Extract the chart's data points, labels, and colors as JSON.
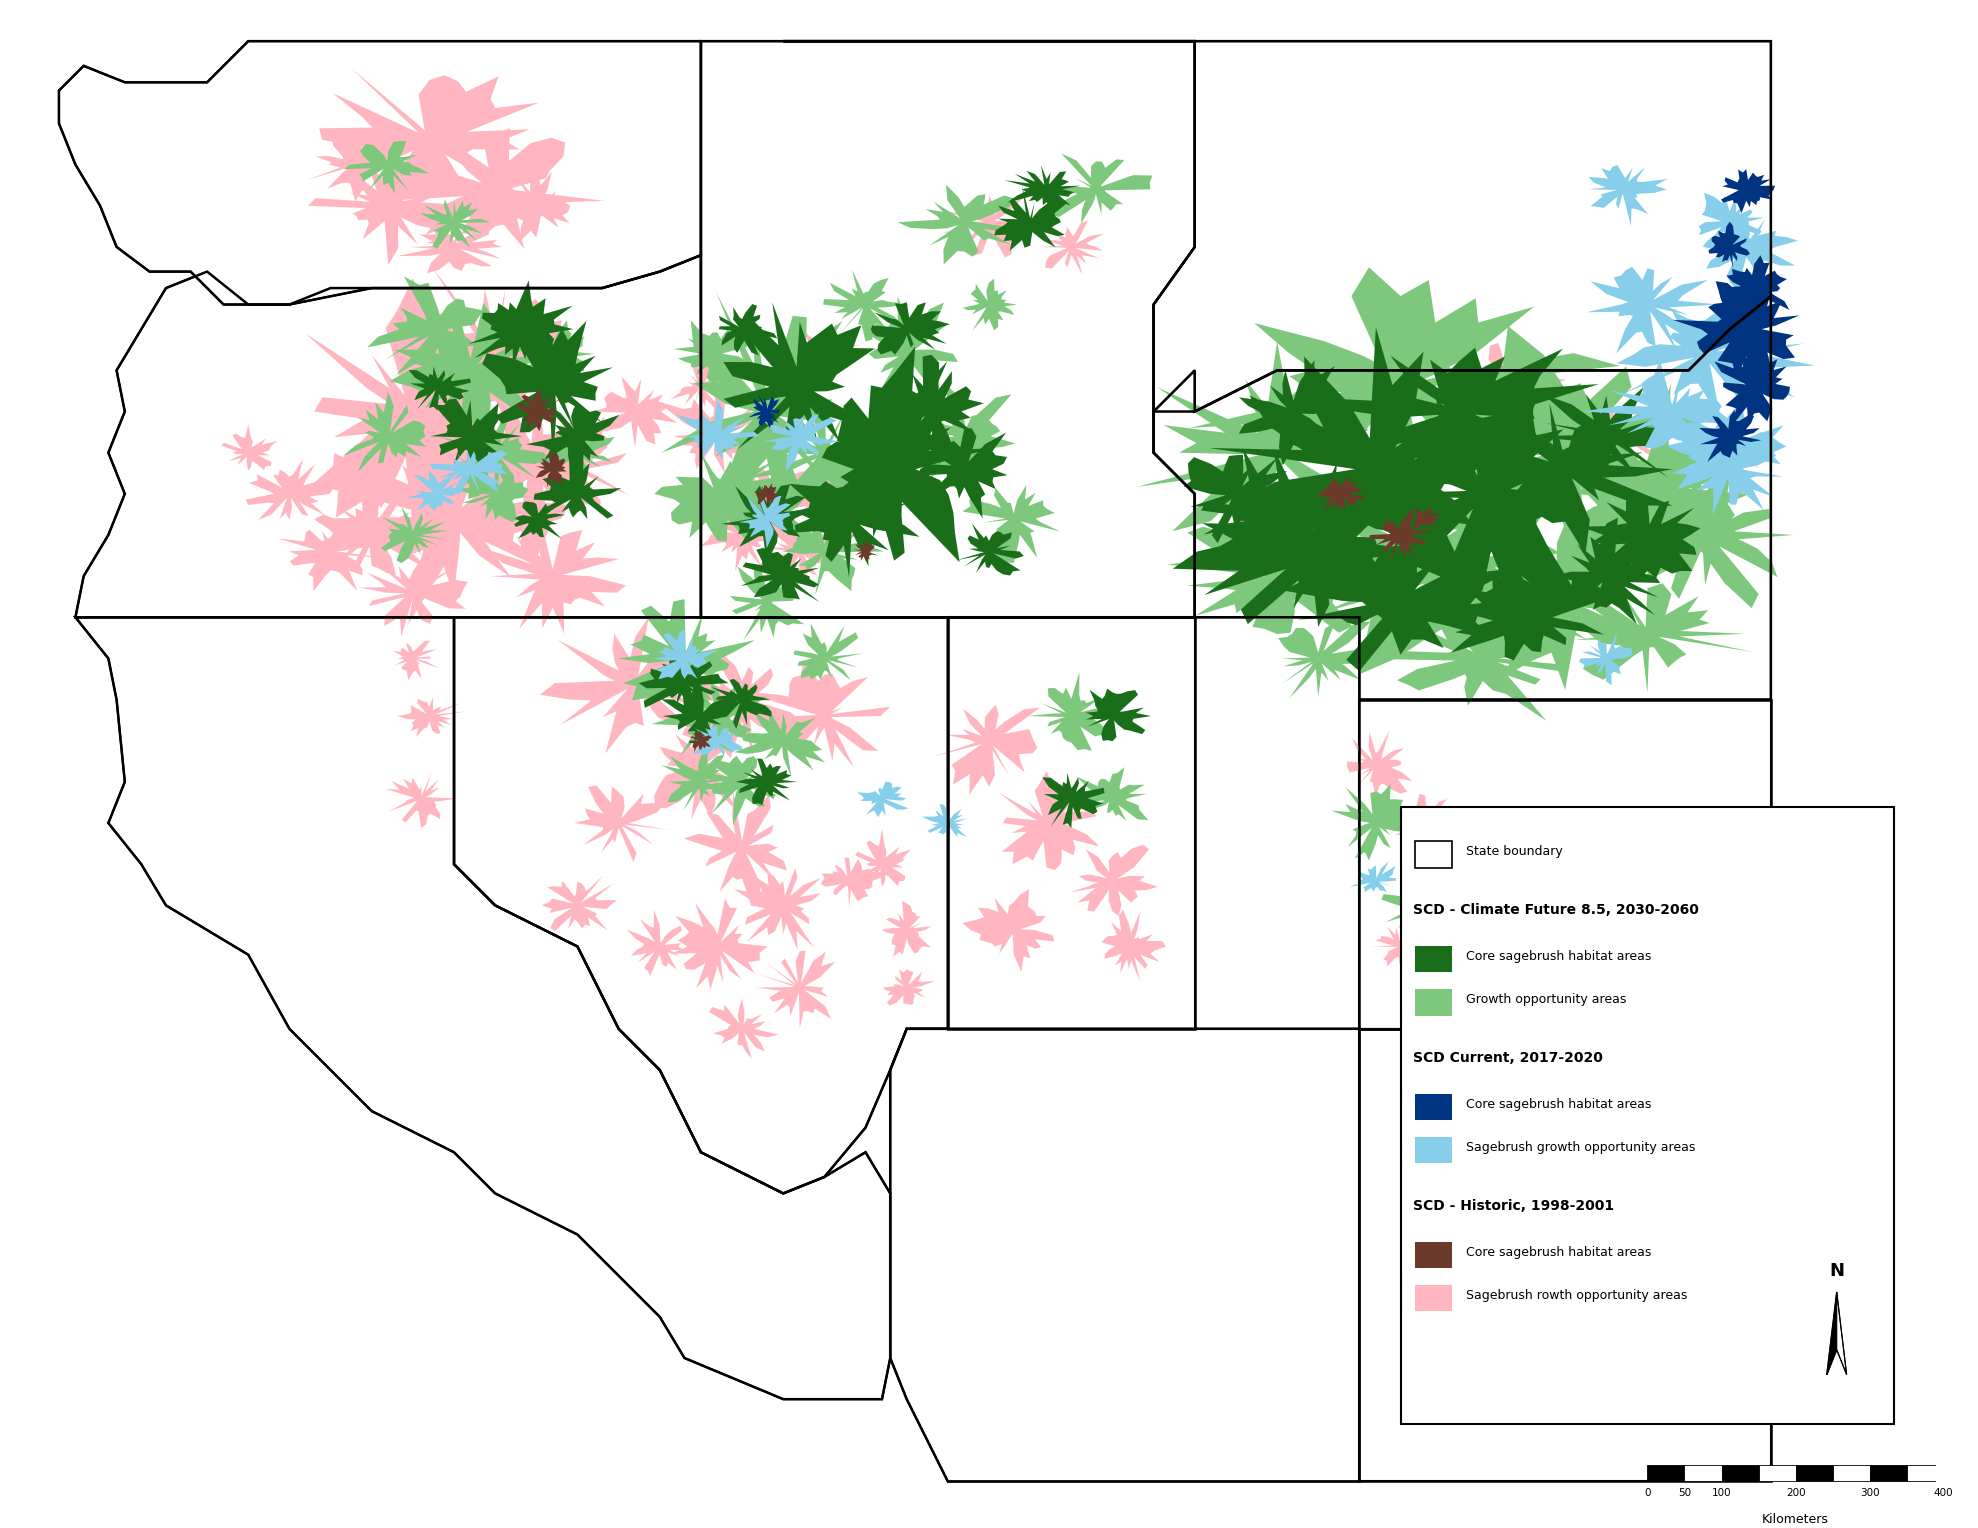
{
  "legend_title_future": "SCD - Climate Future 8.5, 2030-2060",
  "legend_title_current": "SCD Current, 2017-2020",
  "legend_title_historic": "SCD - Historic, 1998-2001",
  "colors": {
    "future_core": "#1a6e1a",
    "future_growth": "#7dc87d",
    "current_core": "#003380",
    "current_growth": "#87ceeb",
    "historic_core": "#6b3a2a",
    "historic_growth": "#ffb6c1",
    "state_border": "#000000",
    "background": "#ffffff"
  },
  "map_xlim": [
    -125.0,
    -102.0
  ],
  "map_ylim": [
    31.0,
    49.5
  ],
  "scale_bar_label": "Kilometers",
  "scale_bar_values": [
    0,
    50,
    100,
    200,
    300,
    400
  ],
  "legend_texts": {
    "state_boundary": "State boundary",
    "future_core": "Core sagebrush habitat areas",
    "future_growth": "Growth opportunity areas",
    "current_core": "Core sagebrush habitat areas",
    "current_growth": "Sagebrush growth opportunity areas",
    "historic_core": "Core sagebrush habitat areas",
    "historic_growth": "Sagebrush rowth opportunity areas"
  }
}
